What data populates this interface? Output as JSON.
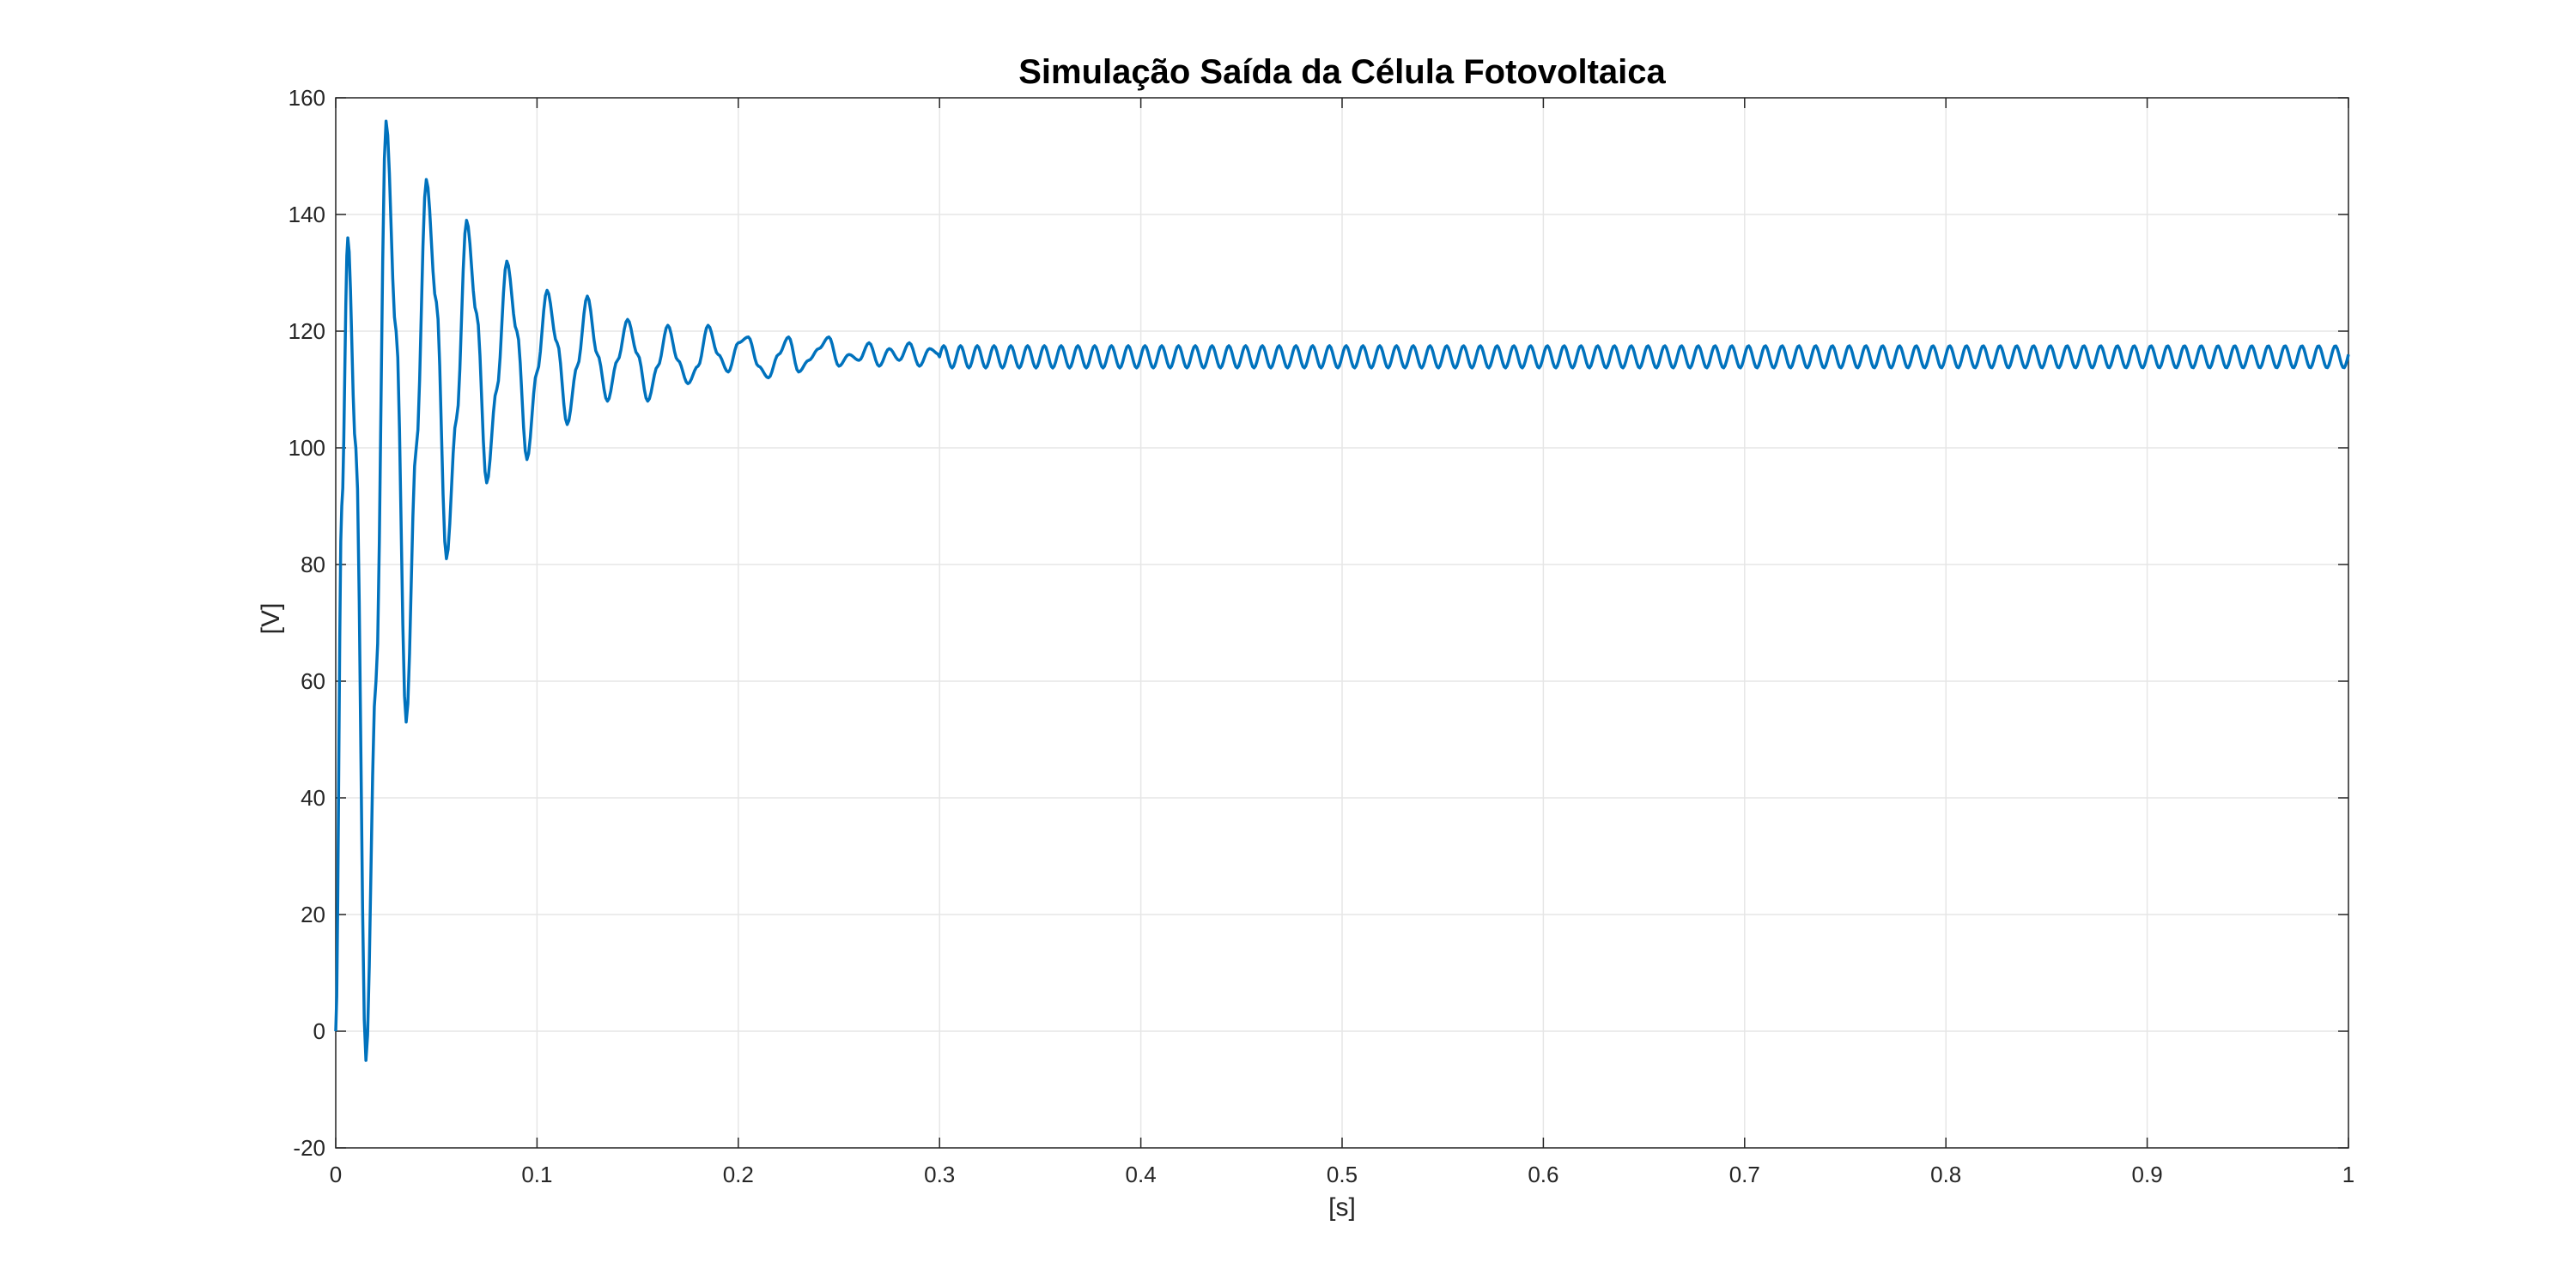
{
  "chart_data": {
    "type": "line",
    "title": "Simulação Saída da Célula Fotovoltaica",
    "xlabel": "[s]",
    "ylabel": "[V]",
    "xlim": [
      0,
      1
    ],
    "ylim": [
      -20,
      160
    ],
    "x_ticks": [
      0,
      0.1,
      0.2,
      0.3,
      0.4,
      0.5,
      0.6,
      0.7,
      0.8,
      0.9,
      1
    ],
    "x_tick_labels": [
      "0",
      "0.1",
      "0.2",
      "0.3",
      "0.4",
      "0.5",
      "0.6",
      "0.7",
      "0.8",
      "0.9",
      "1"
    ],
    "y_ticks": [
      -20,
      0,
      20,
      40,
      60,
      80,
      100,
      120,
      140,
      160
    ],
    "y_tick_labels": [
      "-20",
      "0",
      "20",
      "40",
      "60",
      "80",
      "100",
      "120",
      "140",
      "160"
    ],
    "grid": true,
    "colors": {
      "line": "#0072BD",
      "axes": "#262626",
      "grid": "#e6e6e6"
    },
    "series": [
      {
        "x": [
          0,
          0.003,
          0.006,
          0.01,
          0.015,
          0.02,
          0.025,
          0.03,
          0.035,
          0.04,
          0.045,
          0.05,
          0.055,
          0.06,
          0.065,
          0.07,
          0.075,
          0.08,
          0.085,
          0.09,
          0.095,
          0.1,
          0.105,
          0.11,
          0.115,
          0.12,
          0.125,
          0.13,
          0.135,
          0.14,
          0.145,
          0.15,
          0.155,
          0.16,
          0.165,
          0.17,
          0.175,
          0.18,
          0.185,
          0.19,
          0.195,
          0.2,
          0.205,
          0.21,
          0.215,
          0.22,
          0.225,
          0.23,
          0.235,
          0.24,
          0.245,
          0.25,
          0.255,
          0.26,
          0.265,
          0.27,
          0.275,
          0.28,
          0.285,
          0.29,
          0.295,
          0.3
        ],
        "y": [
          0,
          90,
          136,
          100,
          -5,
          60,
          156,
          120,
          53,
          100,
          146,
          125,
          81,
          105,
          139,
          123,
          94,
          110,
          132,
          120,
          98,
          113,
          127,
          118,
          104,
          114,
          126,
          116,
          108,
          115,
          122,
          116,
          108,
          114,
          121,
          115,
          111,
          114,
          121,
          116,
          113,
          118,
          119,
          114,
          112,
          116,
          119,
          113,
          115,
          117,
          119,
          114,
          116,
          115,
          118,
          114,
          117,
          115,
          118,
          114,
          117,
          116
        ]
      }
    ],
    "steady_state": {
      "from_x": 0.3,
      "to_x": 1,
      "mean": 115.6,
      "amplitude": 1.9,
      "period": 0.00833
    }
  }
}
